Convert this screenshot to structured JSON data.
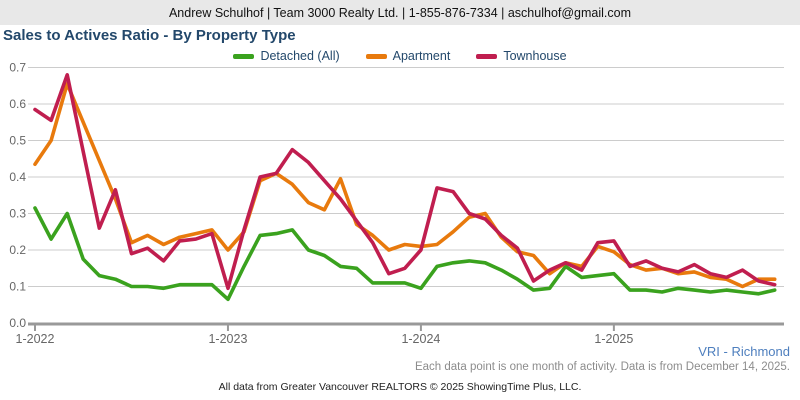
{
  "header": {
    "contact_line": "Andrew Schulhof | Team 3000 Realty Ltd. | 1-855-876-7334 | aschulhof@gmail.com"
  },
  "title": "Sales to Actives Ratio - By Property Type",
  "footer": {
    "region_link": "VRI - Richmond",
    "note": "Each data point is one month of activity. Data is from December 14, 2025.",
    "attribution": "All data from Greater Vancouver REALTORS © 2025 ShowingTime Plus, LLC."
  },
  "colors": {
    "header_bg": "#e8e8e8",
    "title_text": "#23486b",
    "grid": "#cccccc",
    "axis_line": "#999999",
    "axis_text": "#666666",
    "link_blue": "#4e7fbe",
    "note_gray": "#8c8c8c"
  },
  "chart_data": {
    "type": "line",
    "title": "Sales to Actives Ratio - By Property Type",
    "xlabel": "",
    "ylabel": "",
    "ylim": [
      0.0,
      0.7
    ],
    "y_ticks": [
      "0.0",
      "0.1",
      "0.2",
      "0.3",
      "0.4",
      "0.5",
      "0.6",
      "0.7"
    ],
    "grid": "horizontal",
    "legend_position": "top-center",
    "x_tick_labels": [
      "1-2022",
      "1-2023",
      "1-2024",
      "1-2025"
    ],
    "x": [
      "1-2022",
      "2-2022",
      "3-2022",
      "4-2022",
      "5-2022",
      "6-2022",
      "7-2022",
      "8-2022",
      "9-2022",
      "10-2022",
      "11-2022",
      "12-2022",
      "1-2023",
      "2-2023",
      "3-2023",
      "4-2023",
      "5-2023",
      "6-2023",
      "7-2023",
      "8-2023",
      "9-2023",
      "10-2023",
      "11-2023",
      "12-2023",
      "1-2024",
      "2-2024",
      "3-2024",
      "4-2024",
      "5-2024",
      "6-2024",
      "7-2024",
      "8-2024",
      "9-2024",
      "10-2024",
      "11-2024",
      "12-2024",
      "1-2025",
      "2-2025",
      "3-2025",
      "4-2025",
      "5-2025",
      "6-2025",
      "7-2025",
      "8-2025",
      "9-2025",
      "10-2025",
      "11-2025"
    ],
    "series": [
      {
        "name": "Detached (All)",
        "color": "#3aa21e",
        "values": [
          0.315,
          0.23,
          0.3,
          0.175,
          0.13,
          0.12,
          0.1,
          0.1,
          0.095,
          0.105,
          0.105,
          0.105,
          0.065,
          0.155,
          0.24,
          0.245,
          0.255,
          0.2,
          0.185,
          0.155,
          0.15,
          0.11,
          0.11,
          0.11,
          0.095,
          0.155,
          0.165,
          0.17,
          0.165,
          0.145,
          0.12,
          0.09,
          0.095,
          0.155,
          0.125,
          0.13,
          0.135,
          0.09,
          0.09,
          0.085,
          0.095,
          0.09,
          0.085,
          0.09,
          0.085,
          0.08,
          0.09
        ]
      },
      {
        "name": "Apartment",
        "color": "#e87a0d",
        "values": [
          0.435,
          0.5,
          0.655,
          0.55,
          0.445,
          0.34,
          0.22,
          0.24,
          0.215,
          0.235,
          0.245,
          0.255,
          0.2,
          0.25,
          0.39,
          0.41,
          0.38,
          0.33,
          0.31,
          0.395,
          0.27,
          0.24,
          0.2,
          0.215,
          0.21,
          0.215,
          0.25,
          0.29,
          0.3,
          0.235,
          0.195,
          0.185,
          0.135,
          0.165,
          0.155,
          0.21,
          0.195,
          0.16,
          0.145,
          0.15,
          0.135,
          0.14,
          0.125,
          0.12,
          0.1,
          0.12,
          0.12
        ]
      },
      {
        "name": "Townhouse",
        "color": "#c01e4f",
        "values": [
          0.585,
          0.555,
          0.68,
          0.47,
          0.26,
          0.365,
          0.19,
          0.205,
          0.17,
          0.225,
          0.23,
          0.245,
          0.095,
          0.255,
          0.4,
          0.41,
          0.475,
          0.44,
          0.39,
          0.34,
          0.28,
          0.22,
          0.135,
          0.15,
          0.2,
          0.37,
          0.36,
          0.3,
          0.285,
          0.24,
          0.205,
          0.115,
          0.145,
          0.165,
          0.145,
          0.22,
          0.225,
          0.155,
          0.17,
          0.15,
          0.14,
          0.16,
          0.135,
          0.125,
          0.145,
          0.115,
          0.105
        ]
      }
    ]
  }
}
